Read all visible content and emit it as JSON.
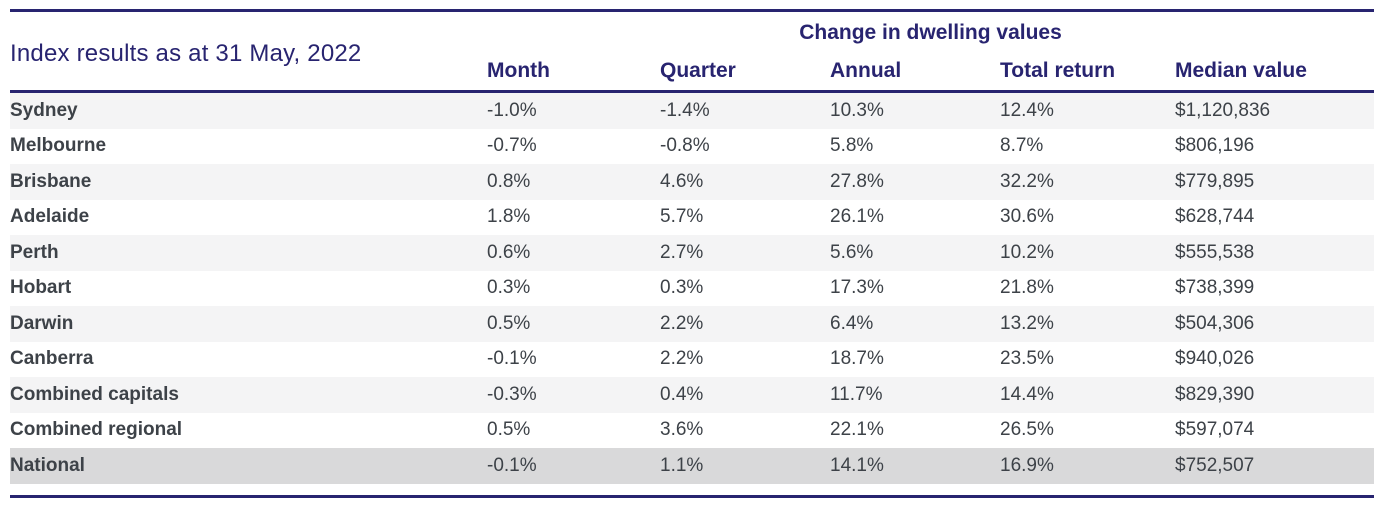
{
  "chart_data": {
    "type": "table",
    "title": "Index results as at 31 May, 2022",
    "group_header": "Change in dwelling values",
    "columns": [
      "Month",
      "Quarter",
      "Annual",
      "Total return",
      "Median value"
    ],
    "rows": [
      {
        "label": "Sydney",
        "values": [
          "-1.0%",
          "-1.4%",
          "10.3%",
          "12.4%",
          "$1,120,836"
        ]
      },
      {
        "label": "Melbourne",
        "values": [
          "-0.7%",
          "-0.8%",
          "5.8%",
          "8.7%",
          "$806,196"
        ]
      },
      {
        "label": "Brisbane",
        "values": [
          "0.8%",
          "4.6%",
          "27.8%",
          "32.2%",
          "$779,895"
        ]
      },
      {
        "label": "Adelaide",
        "values": [
          "1.8%",
          "5.7%",
          "26.1%",
          "30.6%",
          "$628,744"
        ]
      },
      {
        "label": "Perth",
        "values": [
          "0.6%",
          "2.7%",
          "5.6%",
          "10.2%",
          "$555,538"
        ]
      },
      {
        "label": "Hobart",
        "values": [
          "0.3%",
          "0.3%",
          "17.3%",
          "21.8%",
          "$738,399"
        ]
      },
      {
        "label": "Darwin",
        "values": [
          "0.5%",
          "2.2%",
          "6.4%",
          "13.2%",
          "$504,306"
        ]
      },
      {
        "label": "Canberra",
        "values": [
          "-0.1%",
          "2.2%",
          "18.7%",
          "23.5%",
          "$940,026"
        ]
      },
      {
        "label": "Combined capitals",
        "values": [
          "-0.3%",
          "0.4%",
          "11.7%",
          "14.4%",
          "$829,390"
        ]
      },
      {
        "label": "Combined regional",
        "values": [
          "0.5%",
          "3.6%",
          "22.1%",
          "26.5%",
          "$597,074"
        ]
      },
      {
        "label": "National",
        "values": [
          "-0.1%",
          "1.1%",
          "14.1%",
          "16.9%",
          "$752,507"
        ]
      }
    ],
    "layout": {
      "striped": true,
      "highlight_last_row": true
    }
  },
  "colors": {
    "navy": "#282470",
    "body_text": "#3d4248",
    "row_alt": "#f4f4f5",
    "row_national": "#d9d9da"
  }
}
